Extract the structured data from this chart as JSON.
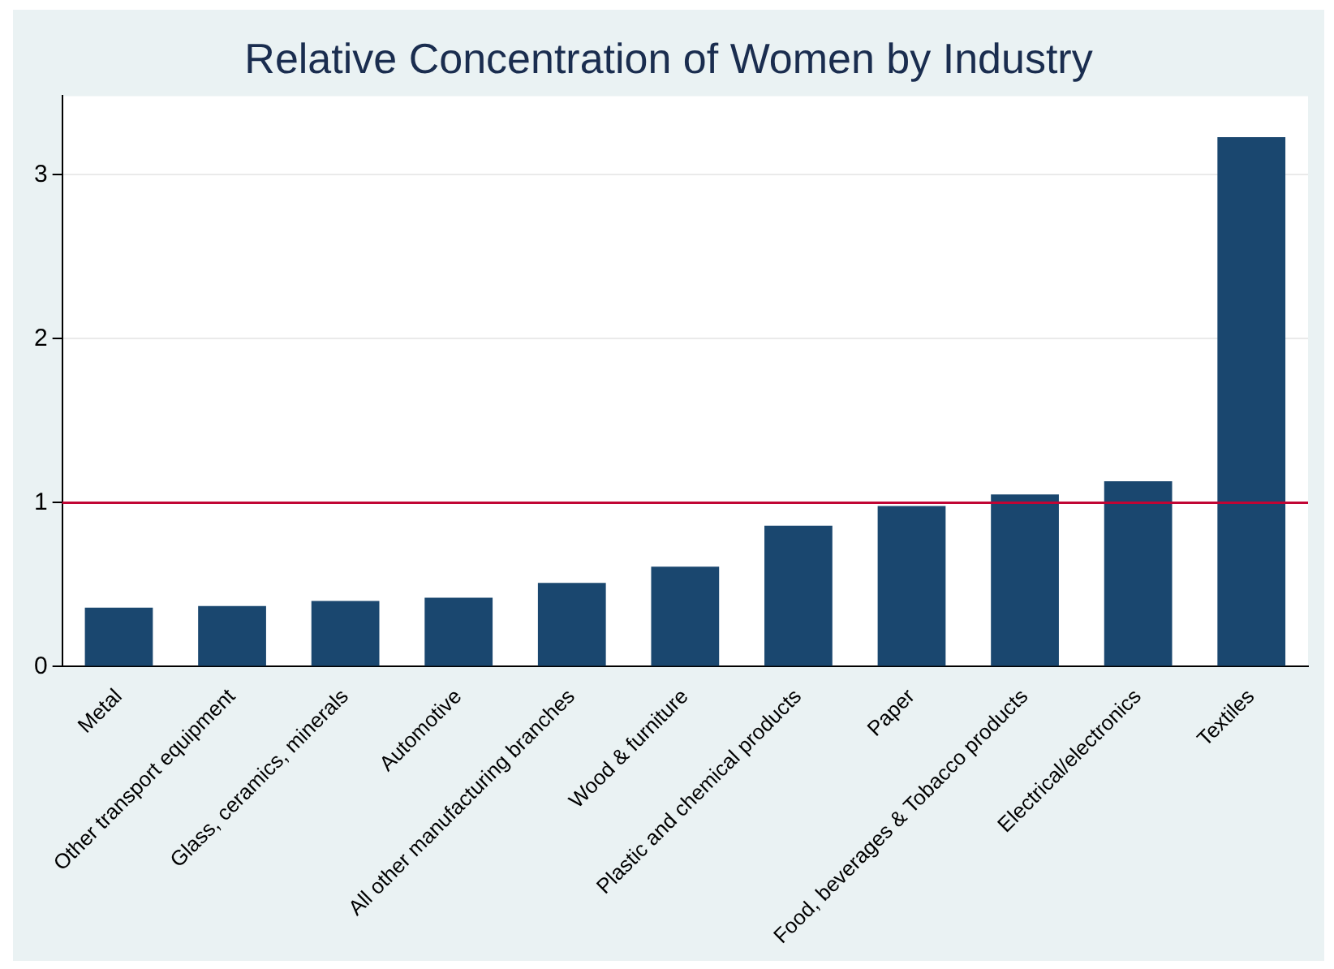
{
  "chart_data": {
    "type": "bar",
    "title": "Relative Concentration of Women by Industry",
    "categories": [
      "Metal",
      "Other transport equipment",
      "Glass, ceramics, minerals",
      "Automotive",
      "All other manufacturing branches",
      "Wood & furniture",
      "Plastic and chemical products",
      "Paper",
      "Food, beverages & Tobacco products",
      "Electrical/electronics",
      "Textiles"
    ],
    "values": [
      0.36,
      0.37,
      0.4,
      0.42,
      0.51,
      0.61,
      0.86,
      0.98,
      1.05,
      1.13,
      3.23
    ],
    "color": "#1a476f",
    "ylim": [
      0,
      3.48
    ],
    "yticks": [
      0,
      1,
      2,
      3
    ],
    "grid": "y",
    "ref_lines": [
      {
        "axis": "y",
        "value": 1,
        "color": "#c10534"
      }
    ]
  }
}
